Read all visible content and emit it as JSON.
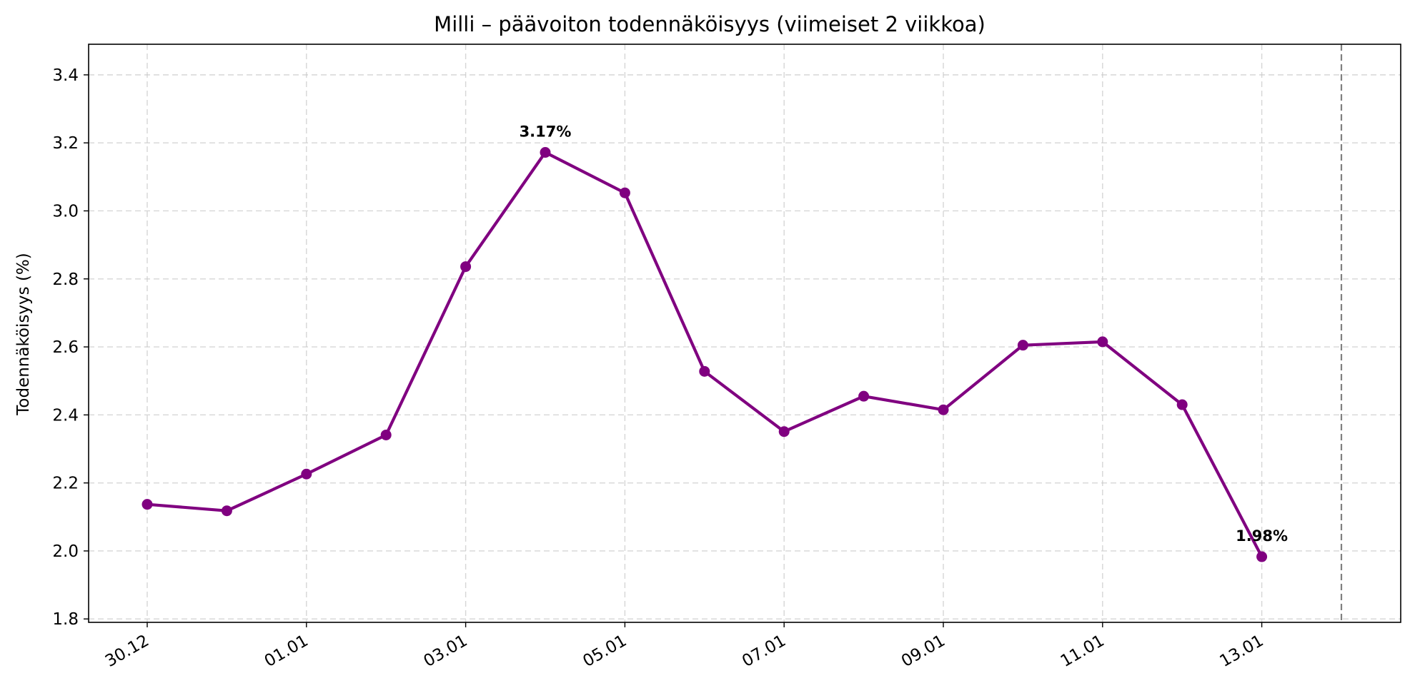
{
  "chart_data": {
    "type": "line",
    "title": "Milli – päävoiton todennäköisyys (viimeiset 2 viikkoa)",
    "xlabel": "",
    "ylabel": "Todennäköisyys (%)",
    "x": [
      "30.12",
      "31.12",
      "01.01",
      "02.01",
      "03.01",
      "04.01",
      "05.01",
      "06.01",
      "07.01",
      "08.01",
      "09.01",
      "10.01",
      "11.01",
      "12.01",
      "13.01"
    ],
    "x_tick_labels": [
      "30.12",
      "01.01",
      "03.01",
      "05.01",
      "07.01",
      "09.01",
      "11.01",
      "13.01"
    ],
    "series": [
      {
        "values": [
          2.137,
          2.118,
          2.226,
          2.341,
          2.836,
          3.172,
          3.053,
          2.528,
          2.351,
          2.455,
          2.415,
          2.605,
          2.615,
          2.43,
          1.983
        ],
        "color": "#800080",
        "marker": "circle"
      }
    ],
    "annotations": [
      {
        "x": "04.01",
        "y": 3.172,
        "text": "3.17%"
      },
      {
        "x": "13.01",
        "y": 1.983,
        "text": "1.98%"
      }
    ],
    "reference_line": {
      "x": "14.01",
      "style": "dashed",
      "color": "#808080"
    },
    "ylim": [
      1.79,
      3.49
    ],
    "y_ticks": [
      1.8,
      2.0,
      2.2,
      2.4,
      2.6,
      2.8,
      3.0,
      3.2,
      3.4
    ],
    "y_tick_labels": [
      "1.8",
      "2.0",
      "2.2",
      "2.4",
      "2.6",
      "2.8",
      "3.0",
      "3.2",
      "3.4"
    ],
    "grid": true,
    "legend": "none"
  }
}
